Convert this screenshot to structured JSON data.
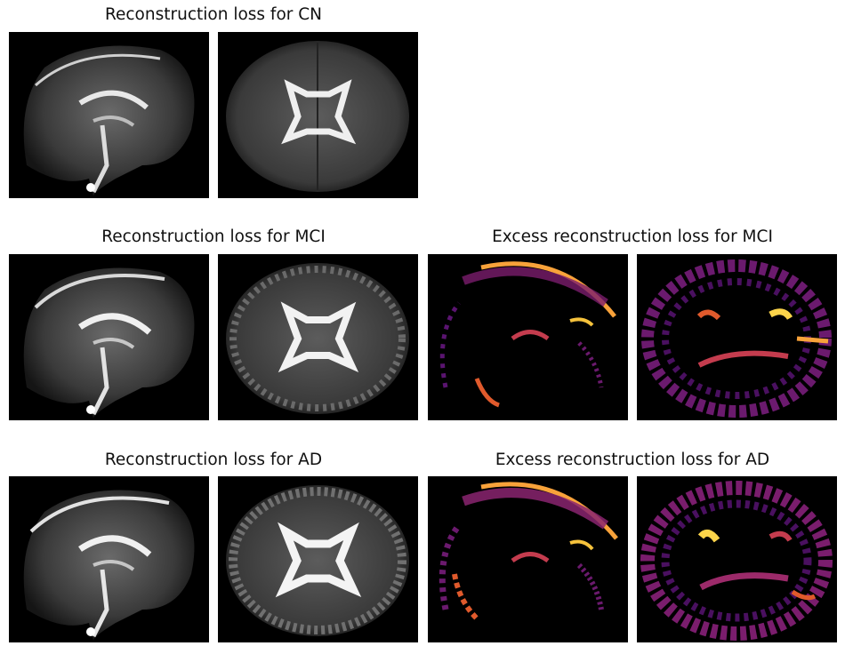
{
  "titles": {
    "cn": "Reconstruction loss for CN",
    "mci": "Reconstruction loss for MCI",
    "mci_excess": "Excess reconstruction loss for MCI",
    "ad": "Reconstruction loss for AD",
    "ad_excess": "Excess reconstruction loss for AD"
  },
  "colors": {
    "background": "#000000",
    "grayscale_high": "#ffffff",
    "inferno_low": "#000004",
    "inferno_mid": "#7a1d6d",
    "inferno_high": "#fcffa4"
  }
}
